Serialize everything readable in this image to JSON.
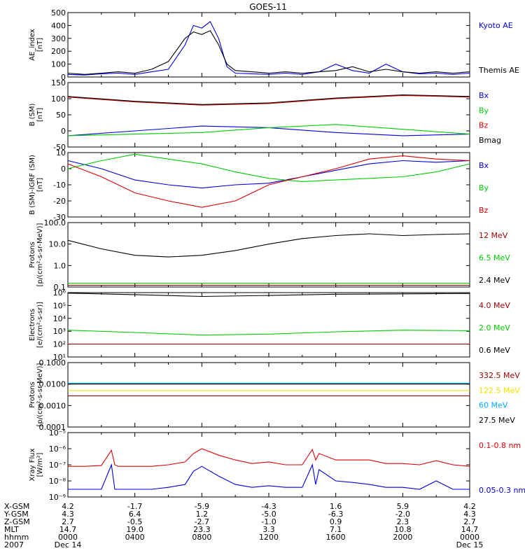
{
  "title": "GOES-11",
  "colors": {
    "black": "#000000",
    "blue": "#0000e0",
    "green": "#00cc00",
    "red": "#dd0000",
    "darkred": "#990000",
    "yellow": "#f0e000",
    "cyan": "#00aaff"
  },
  "chart_data": [
    {
      "type": "line",
      "ylabel": "AE_index\n[nT]",
      "ylim": [
        0,
        500
      ],
      "yticks": [
        "500",
        "400",
        "300",
        "200",
        "100",
        "0"
      ],
      "legend": [
        {
          "name": "Kyoto AE",
          "color": "#0000e0"
        },
        {
          "name": "Themis AE",
          "color": "#000000"
        }
      ],
      "series": [
        {
          "name": "Kyoto AE",
          "color": "#0000e0",
          "x": [
            0,
            1,
            2,
            3,
            4,
            5,
            6,
            7,
            7.5,
            8,
            8.5,
            9,
            9.5,
            10,
            11,
            12,
            13,
            14,
            15,
            16,
            17,
            18,
            19,
            20,
            21,
            22,
            23,
            24
          ],
          "y": [
            20,
            15,
            25,
            30,
            20,
            40,
            60,
            250,
            400,
            380,
            430,
            300,
            80,
            30,
            25,
            20,
            30,
            20,
            40,
            100,
            50,
            30,
            100,
            40,
            25,
            30,
            20,
            30
          ]
        },
        {
          "name": "Themis AE",
          "color": "#000000",
          "x": [
            0,
            1,
            2,
            3,
            4,
            5,
            6,
            7,
            7.5,
            8,
            8.5,
            9,
            9.5,
            10,
            11,
            12,
            13,
            14,
            15,
            16,
            17,
            18,
            19,
            20,
            21,
            22,
            23,
            24
          ],
          "y": [
            30,
            20,
            30,
            40,
            30,
            60,
            120,
            300,
            350,
            330,
            360,
            250,
            100,
            50,
            40,
            30,
            40,
            30,
            40,
            50,
            80,
            40,
            60,
            40,
            30,
            40,
            30,
            40
          ]
        }
      ]
    },
    {
      "type": "line",
      "ylabel": "B (SM)\n[nT]",
      "ylim": [
        -50,
        150
      ],
      "yticks": [
        "150",
        "100",
        "50",
        "0",
        "-50"
      ],
      "legend": [
        {
          "name": "Bx",
          "color": "#0000e0"
        },
        {
          "name": "By",
          "color": "#00cc00"
        },
        {
          "name": "Bz",
          "color": "#dd0000"
        },
        {
          "name": "Bmag",
          "color": "#000000"
        }
      ],
      "series": [
        {
          "name": "Bx",
          "color": "#0000e0",
          "x": [
            0,
            4,
            8,
            12,
            16,
            20,
            24
          ],
          "y": [
            -15,
            0,
            15,
            10,
            -5,
            -15,
            -10
          ]
        },
        {
          "name": "By",
          "color": "#00cc00",
          "x": [
            0,
            4,
            8,
            12,
            16,
            20,
            24
          ],
          "y": [
            -15,
            -10,
            -5,
            10,
            20,
            5,
            -10
          ]
        },
        {
          "name": "Bz",
          "color": "#dd0000",
          "x": [
            0,
            4,
            8,
            12,
            16,
            20,
            24
          ],
          "y": [
            105,
            90,
            80,
            85,
            100,
            110,
            105
          ]
        },
        {
          "name": "Bmag",
          "color": "#000000",
          "x": [
            0,
            4,
            8,
            12,
            16,
            20,
            24
          ],
          "y": [
            107,
            92,
            82,
            87,
            102,
            112,
            107
          ]
        }
      ]
    },
    {
      "type": "line",
      "ylabel": "B (SM)-IGRF (SM)\n[nT]",
      "ylim": [
        -30,
        10
      ],
      "yticks": [
        "10",
        "0",
        "-10",
        "-20",
        "-30"
      ],
      "legend": [
        {
          "name": "Bx",
          "color": "#0000e0"
        },
        {
          "name": "By",
          "color": "#00cc00"
        },
        {
          "name": "Bz",
          "color": "#dd0000"
        }
      ],
      "series": [
        {
          "name": "Bx",
          "color": "#0000e0",
          "x": [
            0,
            2,
            4,
            6,
            8,
            10,
            12,
            14,
            16,
            18,
            20,
            22,
            24
          ],
          "y": [
            5,
            0,
            -7,
            -10,
            -12,
            -10,
            -9,
            -5,
            -1,
            3,
            5,
            4,
            5
          ]
        },
        {
          "name": "By",
          "color": "#00cc00",
          "x": [
            0,
            2,
            4,
            6,
            8,
            10,
            12,
            14,
            16,
            18,
            20,
            22,
            24
          ],
          "y": [
            0,
            5,
            9,
            6,
            3,
            -2,
            -6,
            -8,
            -7,
            -6,
            -5,
            -2,
            3
          ]
        },
        {
          "name": "Bz",
          "color": "#dd0000",
          "x": [
            0,
            2,
            4,
            6,
            8,
            10,
            12,
            14,
            16,
            18,
            20,
            22,
            24
          ],
          "y": [
            3,
            -5,
            -15,
            -20,
            -24,
            -20,
            -10,
            -5,
            0,
            6,
            8,
            6,
            5
          ]
        }
      ]
    },
    {
      "type": "line",
      "yscale": "log",
      "ylabel": "Protons\n[p/(cm²-s-sr-MeV)]",
      "ylim": [
        0.1,
        100
      ],
      "yticks": [
        "100.0",
        "10.0",
        "1.0",
        "0.1"
      ],
      "legend": [
        {
          "name": "12 MeV",
          "color": "#990000"
        },
        {
          "name": "6.5 MeV",
          "color": "#00cc00"
        },
        {
          "name": "2.4 MeV",
          "color": "#000000"
        }
      ],
      "series": [
        {
          "name": "2.4 MeV",
          "color": "#000000",
          "x": [
            0,
            2,
            4,
            6,
            8,
            10,
            12,
            14,
            16,
            18,
            20,
            22,
            24
          ],
          "y": [
            15,
            6,
            3,
            2.5,
            3,
            5,
            10,
            18,
            25,
            30,
            25,
            28,
            30
          ]
        },
        {
          "name": "6.5 MeV",
          "color": "#00cc00",
          "x": [
            0,
            24
          ],
          "y": [
            0.15,
            0.15
          ]
        },
        {
          "name": "12 MeV",
          "color": "#990000",
          "x": [
            0,
            24
          ],
          "y": [
            0.12,
            0.12
          ]
        }
      ]
    },
    {
      "type": "line",
      "yscale": "log",
      "ylabel": "Electrons\n[e/(cm²-s-sr)]",
      "ylim": [
        10,
        1000000
      ],
      "yticks": [
        "10⁶",
        "10⁵",
        "10⁴",
        "10³",
        "10²",
        "10¹"
      ],
      "legend": [
        {
          "name": "4.0 MeV",
          "color": "#990000"
        },
        {
          "name": "2.0 MeV",
          "color": "#00cc00"
        },
        {
          "name": "0.6 MeV",
          "color": "#000000"
        }
      ],
      "series": [
        {
          "name": "0.6 MeV",
          "color": "#000000",
          "x": [
            0,
            4,
            8,
            12,
            16,
            20,
            24
          ],
          "y": [
            900000,
            700000,
            500000,
            600000,
            750000,
            800000,
            850000
          ]
        },
        {
          "name": "2.0 MeV",
          "color": "#00cc00",
          "x": [
            0,
            4,
            8,
            12,
            16,
            20,
            24
          ],
          "y": [
            1200,
            800,
            500,
            600,
            900,
            1200,
            1100
          ]
        },
        {
          "name": "4.0 MeV",
          "color": "#990000",
          "x": [
            0,
            24
          ],
          "y": [
            100,
            100
          ]
        }
      ]
    },
    {
      "type": "line",
      "yscale": "log",
      "ylabel": "Protons\n[p/(cm²-s-sr-MeV)]",
      "ylim": [
        0.0001,
        0.1
      ],
      "yticks": [
        "0.1000",
        "0.0100",
        "0.0010",
        "0.0001"
      ],
      "legend": [
        {
          "name": "332.5 MeV",
          "color": "#990000"
        },
        {
          "name": "122.5 MeV",
          "color": "#f0e000"
        },
        {
          "name": "60 MeV",
          "color": "#00aaff"
        },
        {
          "name": "27.5 MeV",
          "color": "#000000"
        }
      ],
      "series": [
        {
          "name": "27.5 MeV",
          "color": "#000000",
          "x": [
            0,
            24
          ],
          "y": [
            0.01,
            0.01
          ]
        },
        {
          "name": "60 MeV",
          "color": "#00aaff",
          "x": [
            0,
            24
          ],
          "y": [
            0.011,
            0.011
          ]
        },
        {
          "name": "122.5 MeV",
          "color": "#f0e000",
          "x": [
            0,
            24
          ],
          "y": [
            0.005,
            0.005
          ]
        },
        {
          "name": "332.5 MeV",
          "color": "#990000",
          "x": [
            0,
            24
          ],
          "y": [
            0.0028,
            0.0028
          ]
        }
      ]
    },
    {
      "type": "line",
      "yscale": "log",
      "ylabel": "Xray Flux\n[W/m²]",
      "ylim": [
        1e-09,
        1e-05
      ],
      "yticks": [
        "10⁻⁵",
        "10⁻⁶",
        "10⁻⁷",
        "10⁻⁸",
        "10⁻⁹"
      ],
      "legend": [
        {
          "name": "0.1-0.8 nm",
          "color": "#dd0000"
        },
        {
          "name": "0.05-0.3 nm",
          "color": "#0000e0"
        }
      ],
      "series": [
        {
          "name": "0.1-0.8 nm",
          "color": "#dd0000",
          "x": [
            0,
            1,
            2,
            2.6,
            2.8,
            3,
            4,
            5,
            6,
            7,
            7.5,
            8,
            9,
            10,
            11,
            12,
            13,
            14,
            14.6,
            14.8,
            15,
            16,
            17,
            18,
            19,
            20,
            21,
            22,
            23,
            24
          ],
          "y": [
            8e-08,
            8e-08,
            9e-08,
            8e-07,
            1e-07,
            8e-08,
            8e-08,
            8e-08,
            1e-07,
            1.5e-07,
            5e-07,
            1e-06,
            4e-07,
            2e-07,
            1.2e-07,
            1.5e-07,
            1e-07,
            1e-07,
            9e-07,
            2e-07,
            5e-07,
            2e-07,
            2e-07,
            2e-07,
            1.2e-07,
            1.2e-07,
            1e-07,
            1.8e-07,
            1e-07,
            8e-08
          ]
        },
        {
          "name": "0.05-0.3 nm",
          "color": "#0000e0",
          "x": [
            0,
            1,
            2,
            2.6,
            2.8,
            3,
            4,
            5,
            6,
            7,
            7.5,
            8,
            9,
            10,
            11,
            12,
            13,
            14,
            14.6,
            14.8,
            15,
            16,
            17,
            18,
            19,
            20,
            21,
            22,
            23,
            24
          ],
          "y": [
            3e-09,
            3e-09,
            3e-09,
            1e-07,
            3e-09,
            3e-09,
            3e-09,
            3e-09,
            4e-09,
            6e-09,
            4e-08,
            8e-08,
            2e-08,
            6e-09,
            4e-09,
            5e-09,
            4e-09,
            4e-09,
            1e-07,
            6e-09,
            5e-08,
            1e-08,
            8e-09,
            6e-09,
            4e-09,
            4e-09,
            3e-09,
            1e-08,
            3e-09,
            3e-09
          ]
        }
      ]
    }
  ],
  "axis_table": {
    "rows": [
      {
        "label": "X-GSM",
        "values": [
          "4.2",
          "-1.7",
          "-5.9",
          "-4.3",
          "1.6",
          "5.9",
          "4.2"
        ]
      },
      {
        "label": "Y-GSM",
        "values": [
          "4.3",
          "6.4",
          "1.2",
          "-5.0",
          "-6.3",
          "-2.0",
          "4.3"
        ]
      },
      {
        "label": "Z-GSM",
        "values": [
          "2.7",
          "-0.5",
          "-2.7",
          "-1.0",
          "0.9",
          "2.3",
          "2.7"
        ]
      },
      {
        "label": "MLT",
        "values": [
          "14.7",
          "19.0",
          "23.3",
          "3.3",
          "7.1",
          "10.8",
          "14.7"
        ]
      },
      {
        "label": "hhmm",
        "values": [
          "0000",
          "0400",
          "0800",
          "1200",
          "1600",
          "2000",
          "0000"
        ]
      }
    ],
    "year": "2007",
    "start_date": "Dec 14",
    "end_date": "Dec 15"
  }
}
